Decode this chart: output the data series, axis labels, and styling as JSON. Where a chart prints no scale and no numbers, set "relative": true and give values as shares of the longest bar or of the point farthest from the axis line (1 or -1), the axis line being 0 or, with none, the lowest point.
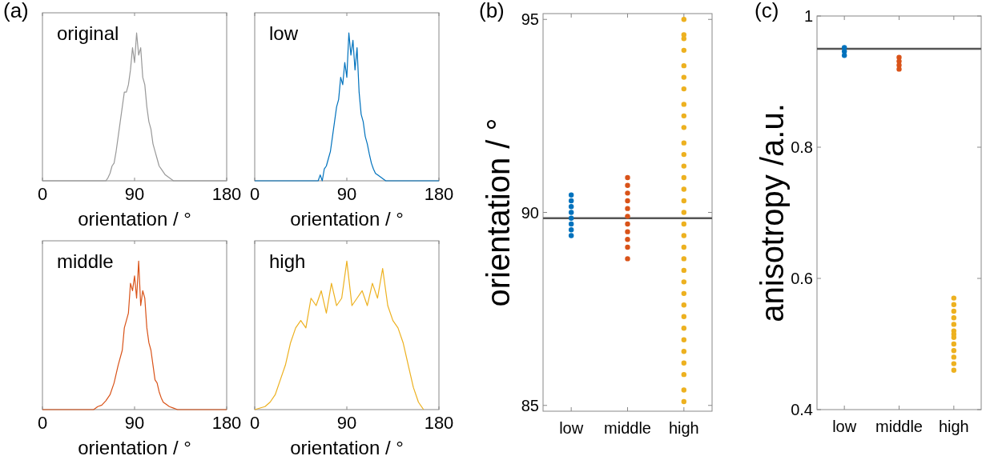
{
  "chart_data": [
    {
      "type": "line",
      "title": "original",
      "xlabel": "orientation / °",
      "annotations": [
        "(a)"
      ],
      "relative": true,
      "xlim": [
        0,
        180
      ],
      "xticks": [
        0,
        90,
        180
      ],
      "marker": "none",
      "tick_labels": "x",
      "x": [
        0,
        62,
        64,
        66,
        68,
        70,
        72,
        74,
        76,
        78,
        80,
        82,
        84,
        86,
        88,
        90,
        92,
        94,
        96,
        98,
        100,
        102,
        104,
        106,
        108,
        110,
        112,
        114,
        116,
        118,
        120,
        124,
        128,
        180
      ],
      "series": [
        {
          "color": "#999999",
          "values": [
            0,
            0,
            0.02,
            0.05,
            0.1,
            0.12,
            0.2,
            0.3,
            0.4,
            0.5,
            0.6,
            0.6,
            0.65,
            0.75,
            0.9,
            0.8,
            1.0,
            0.85,
            0.9,
            0.7,
            0.65,
            0.5,
            0.4,
            0.35,
            0.25,
            0.2,
            0.15,
            0.1,
            0.08,
            0.06,
            0.04,
            0.02,
            0,
            0
          ]
        }
      ]
    },
    {
      "type": "line",
      "title": "low",
      "xlabel": "orientation / °",
      "relative": true,
      "xlim": [
        0,
        180
      ],
      "xticks": [
        0,
        90,
        180
      ],
      "marker": "none",
      "tick_labels": "x",
      "x": [
        0,
        62,
        64,
        66,
        68,
        70,
        72,
        74,
        76,
        78,
        80,
        82,
        84,
        86,
        88,
        90,
        92,
        94,
        96,
        98,
        100,
        102,
        104,
        106,
        108,
        110,
        112,
        114,
        116,
        118,
        120,
        124,
        128,
        180
      ],
      "series": [
        {
          "color": "#0072bd",
          "values": [
            0,
            0,
            0.04,
            0,
            0.08,
            0.1,
            0.15,
            0.2,
            0.3,
            0.4,
            0.5,
            0.55,
            0.7,
            0.65,
            0.8,
            0.7,
            1.0,
            0.85,
            0.95,
            0.75,
            0.9,
            0.6,
            0.45,
            0.4,
            0.3,
            0.25,
            0.18,
            0.12,
            0.08,
            0.05,
            0.04,
            0.02,
            0,
            0
          ]
        }
      ]
    },
    {
      "type": "line",
      "title": "middle",
      "xlabel": "orientation / °",
      "relative": true,
      "xlim": [
        0,
        180
      ],
      "xticks": [
        0,
        90,
        180
      ],
      "marker": "none",
      "tick_labels": "x",
      "x": [
        0,
        50,
        54,
        58,
        62,
        66,
        70,
        74,
        78,
        80,
        82,
        84,
        86,
        88,
        90,
        92,
        94,
        96,
        98,
        100,
        102,
        104,
        106,
        108,
        110,
        112,
        114,
        116,
        118,
        120,
        124,
        128,
        132,
        180
      ],
      "series": [
        {
          "color": "#d95319",
          "values": [
            0,
            0,
            0.02,
            0.03,
            0.06,
            0.1,
            0.18,
            0.3,
            0.4,
            0.55,
            0.6,
            0.65,
            0.85,
            0.8,
            0.9,
            0.75,
            1.0,
            0.7,
            0.8,
            0.75,
            0.55,
            0.45,
            0.4,
            0.3,
            0.2,
            0.18,
            0.12,
            0.08,
            0.05,
            0.04,
            0.02,
            0.01,
            0,
            0
          ]
        }
      ]
    },
    {
      "type": "line",
      "title": "high",
      "xlabel": "orientation / °",
      "relative": true,
      "xlim": [
        0,
        180
      ],
      "xticks": [
        0,
        90,
        180
      ],
      "marker": "none",
      "tick_labels": "x",
      "x": [
        0,
        10,
        15,
        20,
        25,
        30,
        35,
        40,
        45,
        50,
        55,
        60,
        65,
        70,
        75,
        80,
        85,
        90,
        95,
        100,
        105,
        110,
        115,
        120,
        125,
        130,
        135,
        140,
        145,
        150,
        155,
        160,
        165
      ],
      "series": [
        {
          "color": "#edb120",
          "values": [
            0,
            0.02,
            0.05,
            0.1,
            0.2,
            0.3,
            0.45,
            0.55,
            0.6,
            0.55,
            0.75,
            0.7,
            0.8,
            0.65,
            0.85,
            0.7,
            0.75,
            1.0,
            0.7,
            0.75,
            0.8,
            0.7,
            0.85,
            0.75,
            0.95,
            0.7,
            0.6,
            0.55,
            0.45,
            0.3,
            0.15,
            0.05,
            0
          ]
        }
      ]
    },
    {
      "type": "scatter",
      "ylabel": "orientation / °",
      "annotations": [
        "(b)"
      ],
      "categories": [
        "low",
        "middle",
        "high"
      ],
      "ylim": [
        84.85,
        95.15
      ],
      "yticks": [
        85,
        90,
        95
      ],
      "marker": "circle",
      "ref_lines": [
        {
          "axis": "y",
          "value": 89.85,
          "color": "#555555"
        }
      ],
      "series": [
        {
          "color": "#0072bd",
          "x": [
            "low",
            "low",
            "low",
            "low",
            "low",
            "low",
            "low",
            "low"
          ],
          "values": [
            90.45,
            90.3,
            90.15,
            90.0,
            89.85,
            89.7,
            89.55,
            89.4
          ]
        },
        {
          "color": "#d95319",
          "x": [
            "middle",
            "middle",
            "middle",
            "middle",
            "middle",
            "middle",
            "middle",
            "middle",
            "middle",
            "middle",
            "middle"
          ],
          "values": [
            90.9,
            90.7,
            90.5,
            90.3,
            90.1,
            89.9,
            89.7,
            89.5,
            89.3,
            89.1,
            88.8
          ]
        },
        {
          "color": "#edb120",
          "x": [
            "high",
            "high",
            "high",
            "high",
            "high",
            "high",
            "high",
            "high",
            "high",
            "high",
            "high",
            "high",
            "high",
            "high",
            "high",
            "high",
            "high",
            "high",
            "high",
            "high",
            "high",
            "high",
            "high",
            "high",
            "high",
            "high",
            "high",
            "high",
            "high",
            "high",
            "high",
            "high",
            "high"
          ],
          "values": [
            95.0,
            94.6,
            94.5,
            94.2,
            93.8,
            93.5,
            93.2,
            92.8,
            92.5,
            92.2,
            91.8,
            91.5,
            91.2,
            90.9,
            90.6,
            90.3,
            90.0,
            89.7,
            89.4,
            89.1,
            88.8,
            88.5,
            88.2,
            87.9,
            87.6,
            87.3,
            87.0,
            86.7,
            86.4,
            86.1,
            85.8,
            85.4,
            85.1
          ]
        }
      ]
    },
    {
      "type": "scatter",
      "ylabel": "anisotropy /a.u.",
      "annotations": [
        "(c)"
      ],
      "categories": [
        "low",
        "middle",
        "high"
      ],
      "ylim": [
        0.4,
        1
      ],
      "yticks": [
        0.4,
        0.6,
        0.8,
        {
          "value": 1,
          "label": "1"
        }
      ],
      "marker": "circle",
      "ref_lines": [
        {
          "axis": "y",
          "value": 0.95,
          "color": "#555555"
        }
      ],
      "series": [
        {
          "color": "#0072bd",
          "x": [
            "low",
            "low",
            "low"
          ],
          "values": [
            0.952,
            0.946,
            0.94
          ]
        },
        {
          "color": "#d95319",
          "x": [
            "middle",
            "middle",
            "middle",
            "middle"
          ],
          "values": [
            0.937,
            0.931,
            0.925,
            0.919
          ]
        },
        {
          "color": "#edb120",
          "x": [
            "high",
            "high",
            "high",
            "high",
            "high",
            "high",
            "high",
            "high",
            "high",
            "high",
            "high",
            "high",
            "high"
          ],
          "values": [
            0.57,
            0.56,
            0.55,
            0.54,
            0.53,
            0.52,
            0.515,
            0.51,
            0.5,
            0.49,
            0.48,
            0.47,
            0.46
          ]
        }
      ]
    }
  ]
}
